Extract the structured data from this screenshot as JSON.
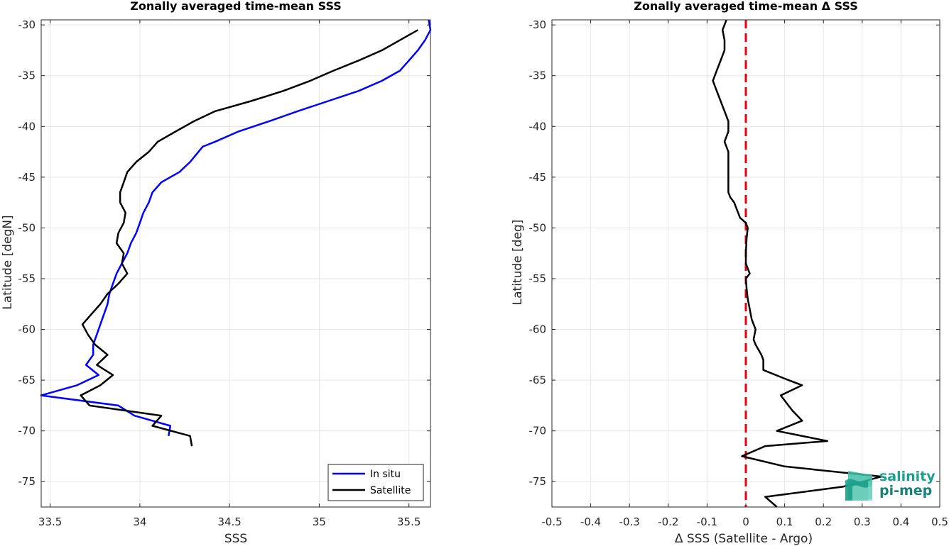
{
  "chart_data": [
    {
      "type": "line",
      "title": "Zonally averaged time-mean SSS",
      "xlabel": "SSS",
      "ylabel": "Latitude [degN]",
      "xlim": [
        33.45,
        35.62
      ],
      "ylim": [
        -77.5,
        -29.5
      ],
      "xticks": [
        "33.5",
        "34",
        "34.5",
        "35",
        "35.5"
      ],
      "xtick_values": [
        33.5,
        34,
        34.5,
        35,
        35.5
      ],
      "yticks": [
        "-30",
        "-35",
        "-40",
        "-45",
        "-50",
        "-55",
        "-60",
        "-65",
        "-70",
        "-75"
      ],
      "ytick_values": [
        -30,
        -35,
        -40,
        -45,
        -50,
        -55,
        -60,
        -65,
        -70,
        -75
      ],
      "grid": true,
      "legend": {
        "location": "bottom-right",
        "entries": [
          "In situ",
          "Satellite"
        ]
      },
      "series": [
        {
          "name": "In situ",
          "color": "#0000ff",
          "x": [
            35.61,
            35.62,
            35.59,
            35.55,
            35.5,
            35.45,
            35.35,
            35.22,
            35.05,
            34.88,
            34.72,
            34.55,
            34.42,
            34.35,
            34.28,
            34.22,
            34.12,
            34.07,
            34.05,
            34.02,
            34.0,
            33.98,
            33.95,
            33.93,
            33.9,
            33.87,
            33.85,
            33.83,
            33.82,
            33.8,
            33.78,
            33.76,
            33.74,
            33.74,
            33.7,
            33.77,
            33.65,
            33.45,
            33.88,
            33.97,
            34.17,
            34.16
          ],
          "y": [
            -29.5,
            -30.5,
            -31.5,
            -32.5,
            -33.5,
            -34.5,
            -35.5,
            -36.5,
            -37.5,
            -38.5,
            -39.5,
            -40.5,
            -41.5,
            -42.0,
            -43.5,
            -44.5,
            -45.5,
            -46.5,
            -47.5,
            -48.5,
            -49.5,
            -50.5,
            -51.5,
            -52.5,
            -53.5,
            -54.5,
            -55.5,
            -56.5,
            -57.5,
            -58.5,
            -59.5,
            -60.5,
            -61.5,
            -62.5,
            -63.5,
            -64.5,
            -65.5,
            -66.5,
            -67.5,
            -68.5,
            -69.5,
            -70.5
          ]
        },
        {
          "name": "Satellite",
          "color": "#000000",
          "x": [
            35.55,
            35.45,
            35.35,
            35.22,
            35.08,
            34.95,
            34.8,
            34.62,
            34.42,
            34.3,
            34.2,
            34.1,
            34.05,
            33.98,
            33.93,
            33.91,
            33.89,
            33.89,
            33.92,
            33.91,
            33.88,
            33.87,
            33.91,
            33.9,
            33.93,
            33.88,
            33.82,
            33.78,
            33.73,
            33.68,
            33.71,
            33.75,
            33.82,
            33.76,
            33.85,
            33.78,
            33.67,
            33.72,
            34.12,
            34.07,
            34.28,
            34.29
          ],
          "y": [
            -30.5,
            -31.5,
            -32.5,
            -33.5,
            -34.5,
            -35.5,
            -36.5,
            -37.5,
            -38.5,
            -39.5,
            -40.5,
            -41.5,
            -42.5,
            -43.5,
            -44.5,
            -45.5,
            -46.5,
            -47.5,
            -48.5,
            -49.5,
            -50.5,
            -51.5,
            -52.5,
            -53.5,
            -54.5,
            -55.5,
            -56.5,
            -57.5,
            -58.5,
            -59.5,
            -60.5,
            -61.5,
            -62.5,
            -63.5,
            -64.5,
            -65.5,
            -66.5,
            -67.5,
            -68.5,
            -69.5,
            -70.5,
            -71.5
          ]
        }
      ]
    },
    {
      "type": "line",
      "title": "Zonally averaged time-mean Δ SSS",
      "xlabel": "Δ SSS (Satellite - Argo)",
      "ylabel": "Latitude [deg]",
      "xlim": [
        -0.5,
        0.5
      ],
      "ylim": [
        -77.5,
        -29.5
      ],
      "xticks": [
        "-0.5",
        "-0.4",
        "-0.3",
        "-0.2",
        "-0.1",
        "0",
        "0.1",
        "0.2",
        "0.3",
        "0.4",
        "0.5"
      ],
      "xtick_values": [
        -0.5,
        -0.4,
        -0.3,
        -0.2,
        -0.1,
        0,
        0.1,
        0.2,
        0.3,
        0.4,
        0.5
      ],
      "yticks": [
        "-30",
        "-35",
        "-40",
        "-45",
        "-50",
        "-55",
        "-60",
        "-65",
        "-70",
        "-75"
      ],
      "ytick_values": [
        -30,
        -35,
        -40,
        -45,
        -50,
        -55,
        -60,
        -65,
        -70,
        -75
      ],
      "grid": true,
      "reference_line": {
        "x": 0,
        "color": "#e3000f",
        "style": "dashed"
      },
      "series": [
        {
          "color": "#000000",
          "x": [
            -0.05,
            -0.06,
            -0.055,
            -0.055,
            -0.065,
            -0.075,
            -0.085,
            -0.075,
            -0.065,
            -0.055,
            -0.045,
            -0.045,
            -0.055,
            -0.045,
            -0.045,
            -0.045,
            -0.045,
            -0.045,
            -0.04,
            -0.03,
            -0.025,
            -0.02,
            -0.015,
            0.0,
            0.005,
            0.002,
            0.0,
            0.0,
            0.005,
            0.01,
            0.0,
            0.002,
            0.005,
            0.01,
            0.015,
            0.025,
            0.02,
            0.025,
            0.04,
            0.045,
            0.045,
            0.11,
            0.145,
            0.09,
            0.12,
            0.145,
            0.08,
            0.21,
            0.05,
            -0.01,
            0.1,
            0.35,
            0.25,
            0.05,
            0.08
          ],
          "y": [
            -29.5,
            -30.5,
            -31.5,
            -32.5,
            -33.5,
            -34.5,
            -35.5,
            -36.5,
            -37.5,
            -38.5,
            -39.5,
            -40.5,
            -41.5,
            -42.5,
            -43.5,
            -44.5,
            -45.5,
            -46.5,
            -47.0,
            -47.5,
            -48.0,
            -48.5,
            -49.0,
            -49.5,
            -50.0,
            -51.0,
            -52.5,
            -53.5,
            -54.0,
            -54.5,
            -55.0,
            -56.0,
            -57.0,
            -58.0,
            -59.0,
            -60.0,
            -61.0,
            -61.5,
            -62.5,
            -63.0,
            -64.0,
            -65.0,
            -65.5,
            -66.5,
            -68.0,
            -69.0,
            -70.0,
            -71.0,
            -71.5,
            -72.5,
            -73.5,
            -74.5,
            -75.5,
            -76.5,
            -77.5
          ]
        }
      ]
    }
  ],
  "watermark": {
    "line1": "salinity",
    "line2": "pi-mep"
  }
}
